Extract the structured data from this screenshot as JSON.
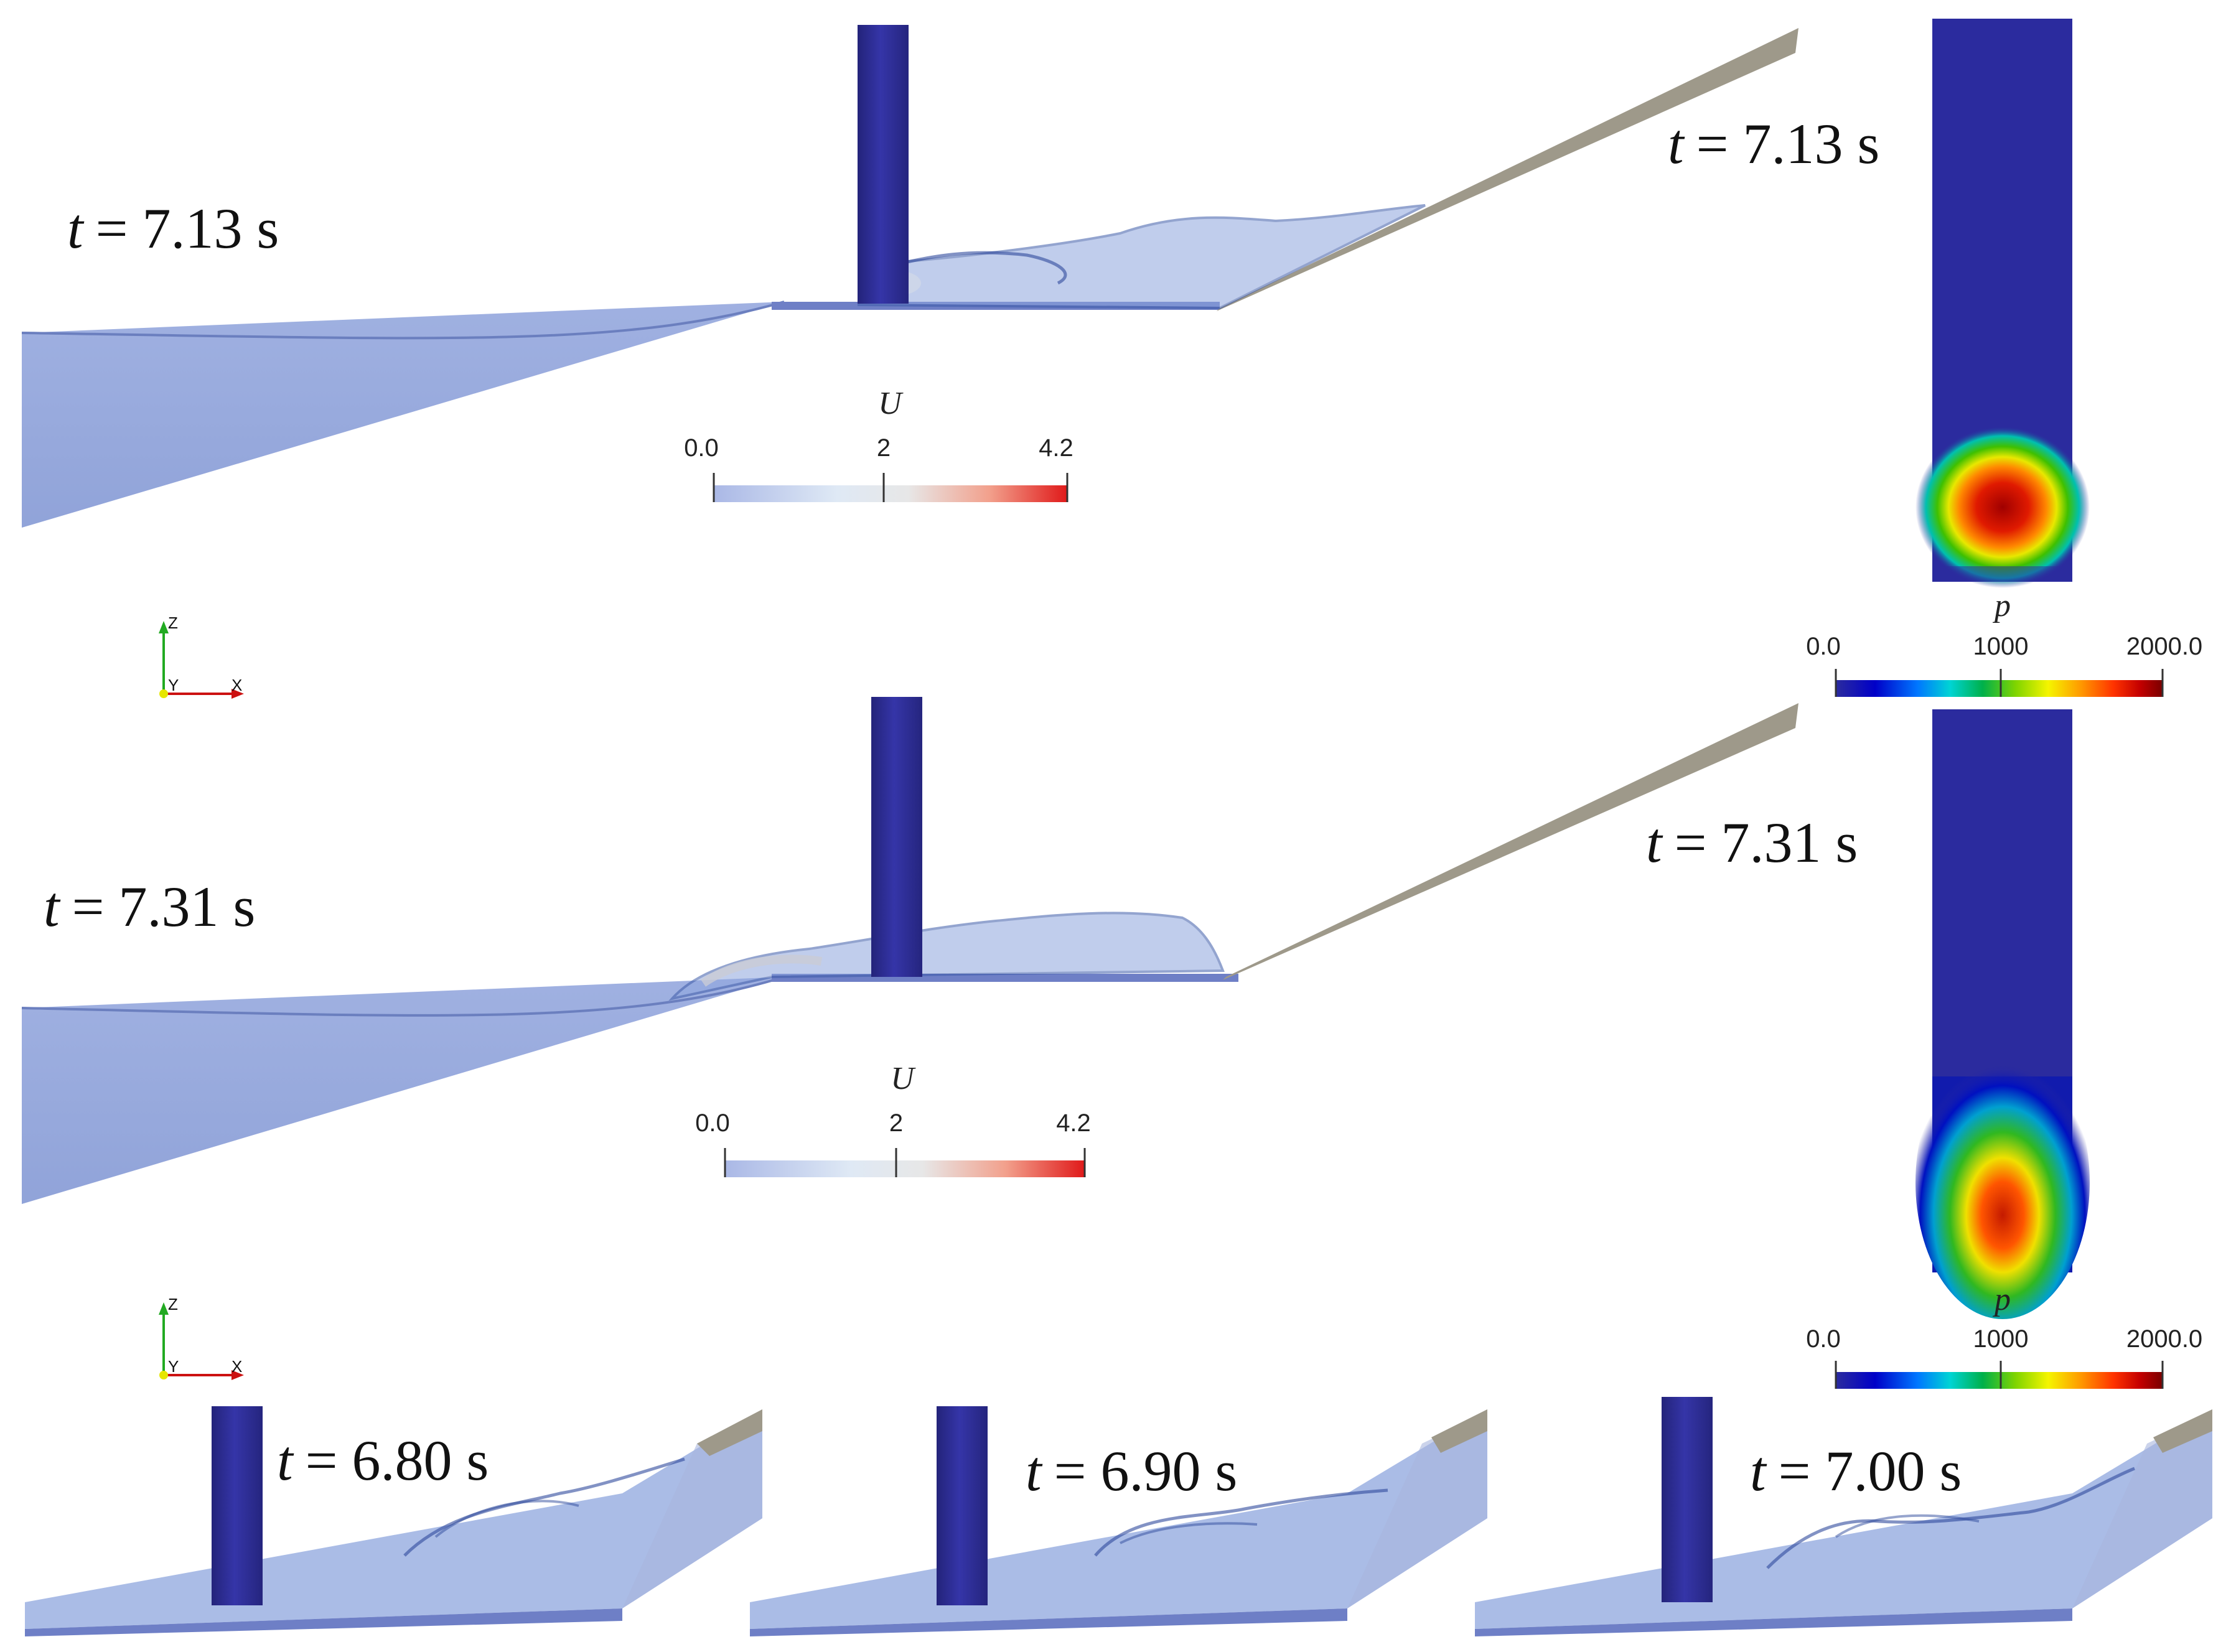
{
  "panels": {
    "top": {
      "time_left": "= 7.13 s",
      "time_right": "= 7.13 s"
    },
    "middle": {
      "time_left": "= 7.31 s",
      "time_right": "= 7.31 s"
    },
    "bottom": [
      {
        "time": "= 6.80 s"
      },
      {
        "time": "= 6.90 s"
      },
      {
        "time": "= 7.00 s"
      }
    ],
    "time_variable": "t"
  },
  "velocity_colorbar": {
    "title": "U",
    "ticks": [
      "0.0",
      "2",
      "4.2"
    ],
    "colors": [
      "#aab8e6",
      "#dfe9f5",
      "#e7e7e7",
      "#f2a08c",
      "#e01a1a"
    ]
  },
  "pressure_colorbar": {
    "title": "p",
    "ticks": [
      "0.0",
      "1000",
      "2000.0"
    ],
    "colors": [
      "#2b2b9e",
      "#0000c8",
      "#0077ff",
      "#00d4d4",
      "#00b04a",
      "#7fd400",
      "#f5f500",
      "#ff9900",
      "#ff3300",
      "#c40000",
      "#7a0000"
    ]
  },
  "axes_triad": {
    "z": "Z",
    "y": "Y",
    "x": "X"
  }
}
